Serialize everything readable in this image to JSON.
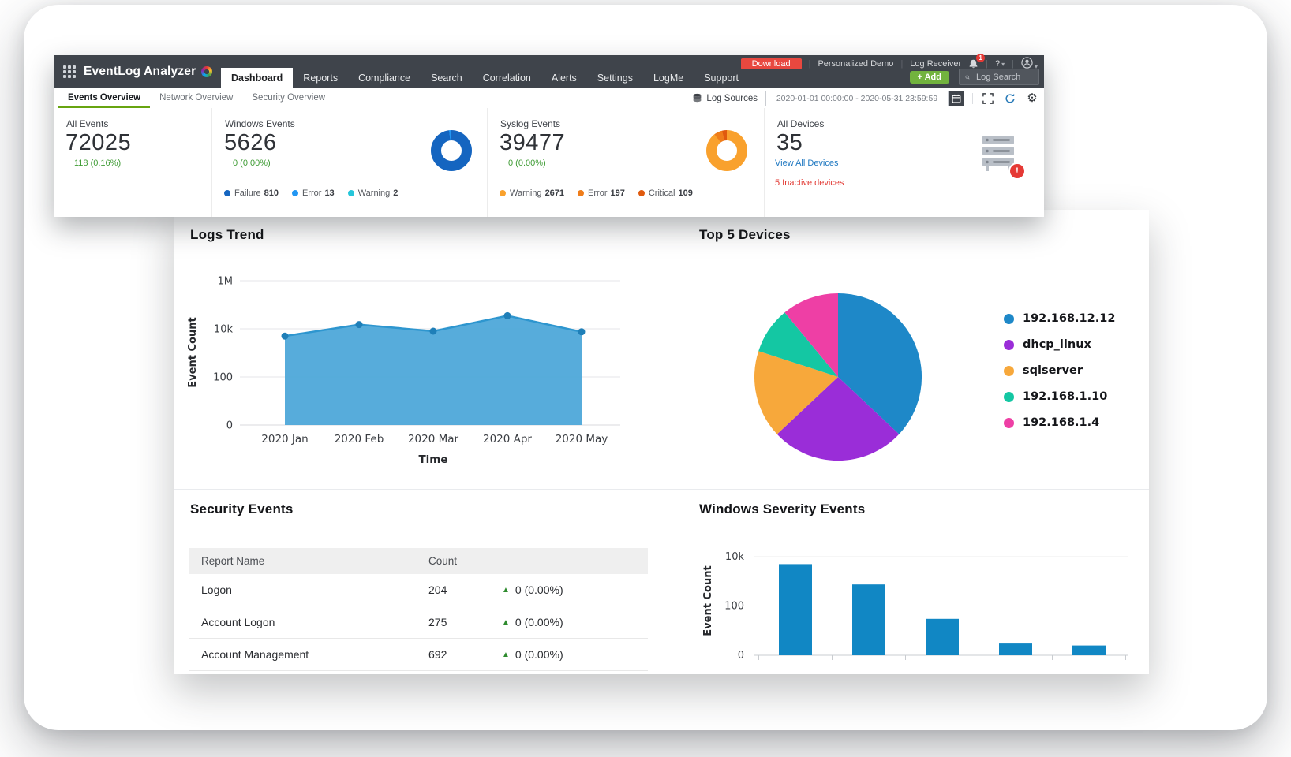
{
  "colors": {
    "navbar": "#3f444b",
    "accent_green": "#67a410",
    "add_green": "#72b33e",
    "download_red": "#e8483f",
    "link_blue": "#1f78c1",
    "alert_red": "#e53935",
    "positive_green": "#3f9c35",
    "chart_blue": "#1187c4"
  },
  "nav": {
    "brand": "EventLog Analyzer",
    "tabs": [
      {
        "label": "Dashboard",
        "active": true
      },
      {
        "label": "Reports"
      },
      {
        "label": "Compliance"
      },
      {
        "label": "Search"
      },
      {
        "label": "Correlation"
      },
      {
        "label": "Alerts"
      },
      {
        "label": "Settings"
      },
      {
        "label": "LogMe"
      },
      {
        "label": "Support"
      }
    ],
    "download_label": "Download",
    "demo_label": "Personalized Demo",
    "log_receiver_label": "Log Receiver",
    "notification_count": "1",
    "help_label": "?",
    "add_label": "+ Add",
    "search_placeholder": "Log Search"
  },
  "subnav": {
    "tabs": [
      {
        "label": "Events Overview",
        "active": true
      },
      {
        "label": "Network Overview"
      },
      {
        "label": "Security Overview"
      }
    ],
    "log_sources_label": "Log Sources",
    "date_range": "2020-01-01 00:00:00 - 2020-05-31 23:59:59"
  },
  "stats": {
    "all_events": {
      "label": "All Events",
      "value": "72025",
      "change": "118 (0.16%)"
    },
    "windows_events": {
      "label": "Windows Events",
      "value": "5626",
      "change": "0 (0.00%)",
      "legend": [
        {
          "label": "Failure",
          "count": 810,
          "color": "#1565c0"
        },
        {
          "label": "Error",
          "count": 13,
          "color": "#2196f3"
        },
        {
          "label": "Warning",
          "count": 2,
          "color": "#26c6da"
        }
      ]
    },
    "syslog_events": {
      "label": "Syslog Events",
      "value": "39477",
      "change": "0 (0.00%)",
      "legend": [
        {
          "label": "Warning",
          "count": 2671,
          "color": "#f9a12d"
        },
        {
          "label": "Error",
          "count": 197,
          "color": "#ef7d1a"
        },
        {
          "label": "Critical",
          "count": 109,
          "color": "#e05a0e"
        }
      ]
    },
    "all_devices": {
      "label": "All Devices",
      "value": "35",
      "link": "View All Devices",
      "inactive": "5 Inactive devices"
    }
  },
  "security_events": {
    "title": "Security Events",
    "headers": [
      "Report Name",
      "Count"
    ],
    "rows": [
      {
        "name": "Logon",
        "count": "204",
        "change": "0 (0.00%)"
      },
      {
        "name": "Account Logon",
        "count": "275",
        "change": "0 (0.00%)"
      },
      {
        "name": "Account Management",
        "count": "692",
        "change": "0 (0.00%)"
      }
    ]
  },
  "chart_data": [
    {
      "type": "area",
      "title": "Logs Trend",
      "x": [
        "2020 Jan",
        "2020 Feb",
        "2020 Mar",
        "2020 Apr",
        "2020 May"
      ],
      "values": [
        5000,
        15000,
        8000,
        35000,
        7500
      ],
      "xlabel": "Time",
      "ylabel": "Event Count",
      "yticks": [
        "0",
        "100",
        "10k",
        "1M"
      ],
      "yscale": "log",
      "grid": true,
      "colors": {
        "fill": "#4aa6d8",
        "line": "#2e96cf",
        "point": "#1f7fb8"
      }
    },
    {
      "type": "pie",
      "title": "Top 5 Devices",
      "labels": [
        "192.168.12.12",
        "dhcp_linux",
        "sqlserver",
        "192.168.1.10",
        "192.168.1.4"
      ],
      "values": [
        37,
        26,
        17,
        9,
        11
      ],
      "values_note": "relative share estimated from slice angles; counts not shown on screen",
      "colors": [
        "#1e88c8",
        "#9a2dd8",
        "#f7a83b",
        "#14c7a3",
        "#ee3fa5"
      ],
      "legend_position": "right"
    },
    {
      "type": "bar",
      "title": "Windows Severity Events",
      "values": [
        5000,
        750,
        30,
        3,
        2.5
      ],
      "values_note": "estimated from log-scale bar heights; category labels cut off at card edge",
      "ylabel": "Event Count",
      "yticks": [
        "0",
        "100",
        "10k"
      ],
      "yscale": "log",
      "grid": true,
      "bar_color": "#1187c4"
    }
  ]
}
